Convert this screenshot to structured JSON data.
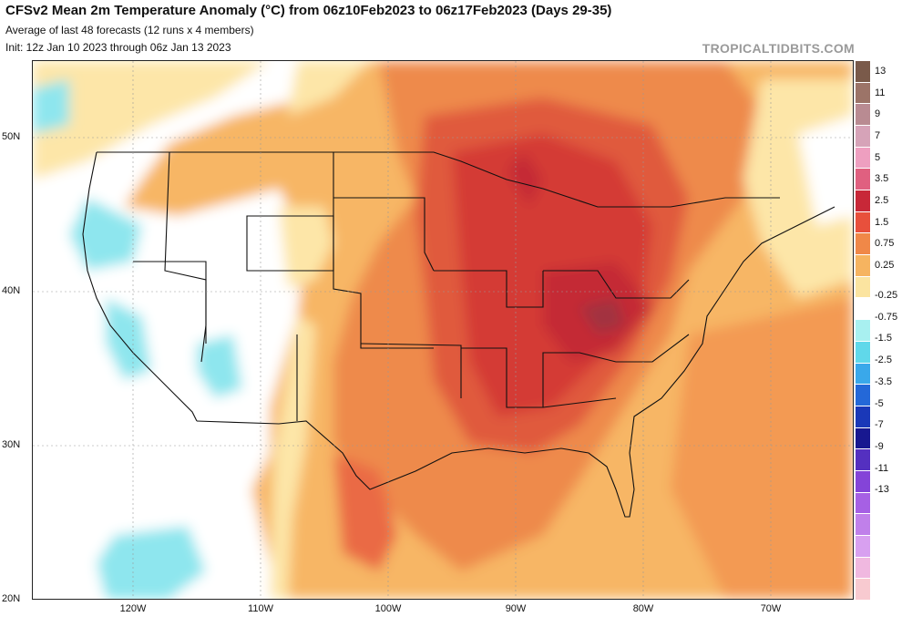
{
  "title": "CFSv2 Mean 2m Temperature Anomaly (°C) from 06z10Feb2023 to 06z17Feb2023 (Days 29-35)",
  "subtitle": "Average of last 48 forecasts (12 runs x 4 members)",
  "init": "Init: 12z Jan 10 2023 through 06z Jan 13 2023",
  "brand": "TROPICALTIDBITS.COM",
  "lat_labels": [
    "50N",
    "40N",
    "30N",
    "20N"
  ],
  "lon_labels": [
    "120W",
    "110W",
    "100W",
    "90W",
    "80W",
    "70W"
  ],
  "colorbar": {
    "labels": [
      "13",
      "11",
      "9",
      "7",
      "5",
      "3.5",
      "2.5",
      "1.5",
      "0.75",
      "0.25",
      "-0.25",
      "-0.75",
      "-1.5",
      "-2.5",
      "-3.5",
      "-5",
      "-7",
      "-9",
      "-11",
      "-13"
    ],
    "colors": [
      "#7a5a4a",
      "#9c7468",
      "#b98b92",
      "#d6a3b8",
      "#ee9fc0",
      "#e06080",
      "#c82838",
      "#e8503c",
      "#f08848",
      "#f6b460",
      "#fbe4a0",
      "#ffffff",
      "#a8f0f0",
      "#60d8ea",
      "#3aa8ea",
      "#2468d8",
      "#1a38b8",
      "#181890",
      "#5430c0",
      "#8444d8",
      "#a660e4",
      "#c080ea",
      "#d8a0f0",
      "#f0b8e0",
      "#f8cad0"
    ]
  },
  "icons": {
    "map": "temperature-anomaly-map"
  }
}
